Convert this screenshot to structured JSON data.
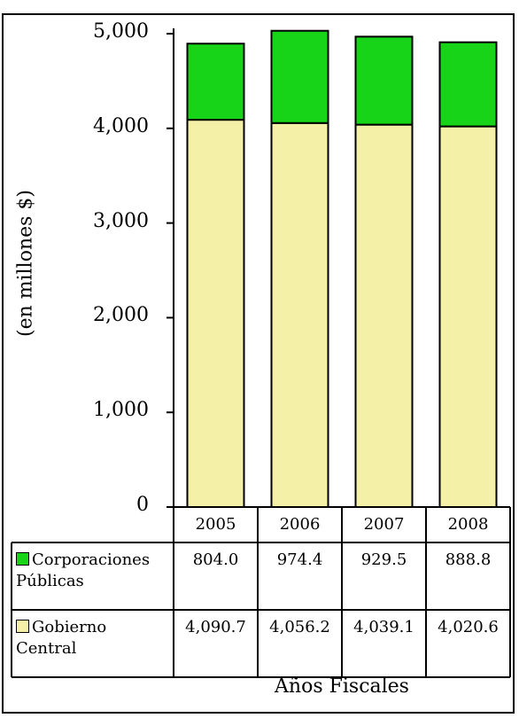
{
  "chart_data": {
    "type": "bar",
    "stacked": true,
    "title": "",
    "xlabel": "Años Fiscales",
    "ylabel": "(en millones $)",
    "ylim": [
      0,
      5000
    ],
    "yticks": [
      "0",
      "1,000",
      "2,000",
      "3,000",
      "4,000",
      "5,000"
    ],
    "categories": [
      "2005",
      "2006",
      "2007",
      "2008"
    ],
    "series": [
      {
        "name": "Gobierno Central",
        "label_lines": [
          "Gobierno",
          "Central"
        ],
        "color": "#f5f0a8",
        "values": [
          4090.7,
          4056.2,
          4039.1,
          4020.6
        ],
        "labels": [
          "4,090.7",
          "4,056.2",
          "4,039.1",
          "4,020.6"
        ]
      },
      {
        "name": "Corporaciones Públicas",
        "label_lines": [
          "Corporaciones",
          "Públicas"
        ],
        "color": "#18d418",
        "values": [
          804.0,
          974.4,
          929.5,
          888.8
        ],
        "labels": [
          "804.0",
          "974.4",
          "929.5",
          "888.8"
        ]
      }
    ],
    "table_rows_order": [
      "Corporaciones Públicas",
      "Gobierno Central"
    ],
    "grid": false,
    "legend": "data-table"
  }
}
